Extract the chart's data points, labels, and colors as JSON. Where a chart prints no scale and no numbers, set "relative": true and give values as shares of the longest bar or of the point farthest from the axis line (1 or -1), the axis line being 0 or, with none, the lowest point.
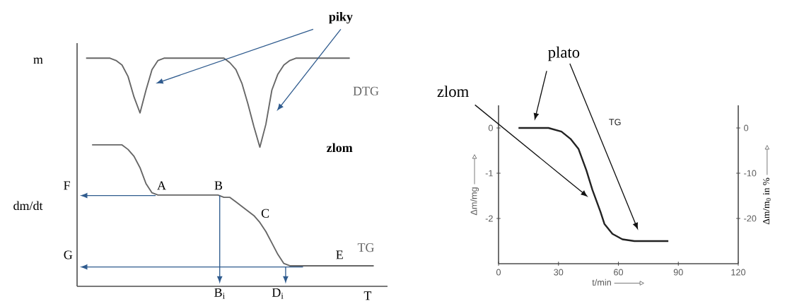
{
  "chart_data": [
    {
      "type": "line",
      "relative": true,
      "xlabel": "T",
      "categories": [
        null,
        null,
        null,
        null,
        null,
        null,
        null,
        null,
        null,
        null,
        null,
        null,
        null,
        null,
        null,
        null,
        null,
        null,
        null,
        null,
        null,
        null,
        null,
        null,
        null,
        null,
        null,
        null,
        null,
        null,
        null,
        null,
        null,
        null,
        null,
        null,
        null,
        null,
        null,
        null,
        null,
        null,
        null,
        null,
        null,
        null,
        null,
        null,
        null
      ],
      "series": [
        {
          "name": "DTG",
          "color": "#666666",
          "values": [
            1.0,
            1.0,
            1.0,
            1.0,
            1.0,
            0.99,
            0.97,
            0.92,
            0.83,
            0.76,
            0.86,
            0.95,
            0.99,
            1.0,
            1.0,
            1.0,
            1.0,
            1.0,
            1.0,
            1.0,
            1.0,
            1.0,
            1.0,
            1.0,
            0.98,
            0.95,
            0.89,
            0.8,
            0.7,
            0.61,
            0.71,
            0.86,
            0.93,
            0.97,
            0.99,
            1.0,
            1.0,
            1.0,
            1.0,
            1.0,
            1.0,
            1.0,
            1.0,
            1.0,
            1.0,
            null,
            null,
            null,
            null
          ]
        },
        {
          "name": "TG",
          "color": "#666666",
          "values": [
            null,
            0.62,
            0.62,
            0.62,
            0.62,
            0.62,
            0.62,
            0.6,
            0.57,
            0.52,
            0.45,
            0.41,
            0.4,
            0.4,
            0.4,
            0.4,
            0.4,
            0.4,
            0.4,
            0.4,
            0.4,
            0.4,
            0.4,
            0.39,
            0.39,
            0.37,
            0.35,
            0.33,
            0.31,
            0.28,
            0.24,
            0.19,
            0.14,
            0.1,
            0.09,
            0.09,
            0.09,
            0.09,
            0.09,
            0.09,
            0.09,
            0.09,
            0.09,
            0.09,
            0.09,
            0.09,
            0.09,
            0.09,
            0.09
          ]
        }
      ],
      "annotations": [
        "piky",
        "zlom",
        "A",
        "B",
        "C",
        "E",
        "F",
        "G",
        "B$_{i}$",
        "D$_{i}$",
        "m",
        "dm/dt"
      ]
    },
    {
      "type": "line",
      "xlabel": "t/min",
      "ylabel": "Δm/mg",
      "y2label": "Δm/m$_{0}$ in %",
      "xlim": [
        0,
        120
      ],
      "xticks": [
        0,
        30,
        60,
        90,
        120
      ],
      "ylim": [
        -3,
        0.5
      ],
      "yticks": [
        -2,
        -1,
        0
      ],
      "y2lim": [
        -30,
        5
      ],
      "y2ticks": [
        -20,
        -10,
        0
      ],
      "series": [
        {
          "name": "TG",
          "color": "#222222",
          "x": [
            10,
            17,
            25,
            31.5,
            36,
            40,
            44,
            47,
            51,
            53,
            57,
            62,
            68,
            85
          ],
          "values": [
            0,
            0,
            0,
            -0.08,
            -0.24,
            -0.46,
            -0.94,
            -1.37,
            -1.85,
            -2.12,
            -2.34,
            -2.46,
            -2.5,
            -2.5
          ]
        }
      ],
      "annotations": [
        "plato",
        "zlom"
      ]
    }
  ]
}
